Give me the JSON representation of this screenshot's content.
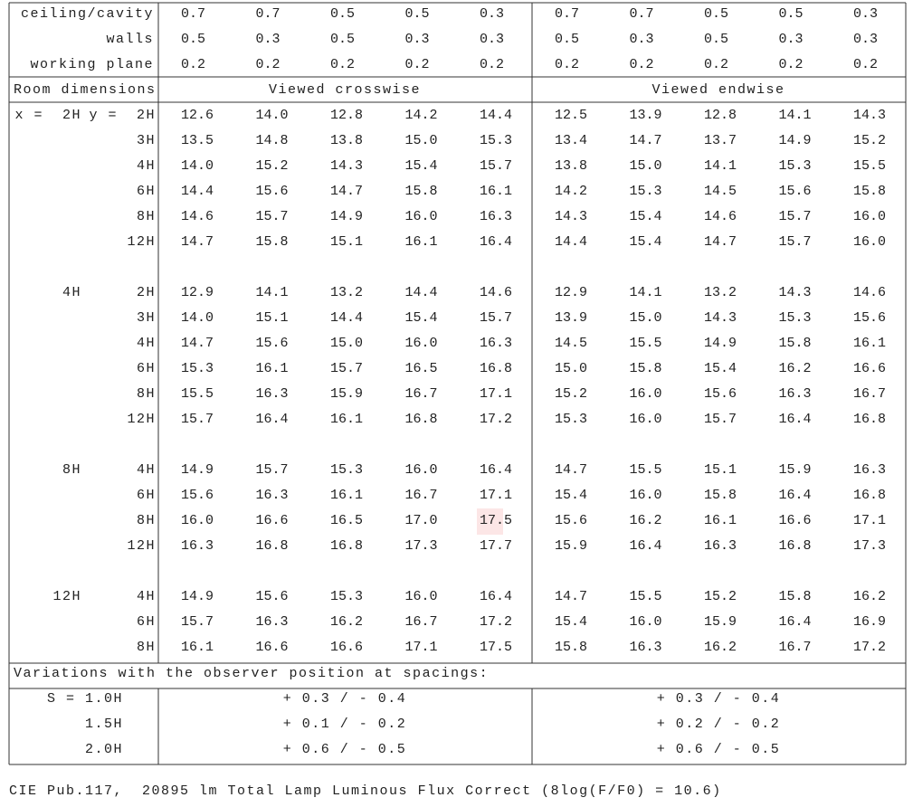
{
  "reflectances": [
    {
      "label": "ceiling/cavity",
      "values": [
        "0.7",
        "0.7",
        "0.5",
        "0.5",
        "0.3",
        "0.7",
        "0.7",
        "0.5",
        "0.5",
        "0.3"
      ]
    },
    {
      "label": "walls",
      "values": [
        "0.5",
        "0.3",
        "0.5",
        "0.3",
        "0.3",
        "0.5",
        "0.3",
        "0.5",
        "0.3",
        "0.3"
      ]
    },
    {
      "label": "working plane",
      "values": [
        "0.2",
        "0.2",
        "0.2",
        "0.2",
        "0.2",
        "0.2",
        "0.2",
        "0.2",
        "0.2",
        "0.2"
      ]
    }
  ],
  "header": {
    "label": "Room dimensions",
    "crosswise": "Viewed crosswise",
    "endwise": "Viewed endwise"
  },
  "groups": [
    {
      "x": "x =  2H",
      "rows": [
        {
          "y": "y =  2H",
          "values": [
            "12.6",
            "14.0",
            "12.8",
            "14.2",
            "14.4",
            "12.5",
            "13.9",
            "12.8",
            "14.1",
            "14.3"
          ]
        },
        {
          "y": "3H",
          "values": [
            "13.5",
            "14.8",
            "13.8",
            "15.0",
            "15.3",
            "13.4",
            "14.7",
            "13.7",
            "14.9",
            "15.2"
          ]
        },
        {
          "y": "4H",
          "values": [
            "14.0",
            "15.2",
            "14.3",
            "15.4",
            "15.7",
            "13.8",
            "15.0",
            "14.1",
            "15.3",
            "15.5"
          ]
        },
        {
          "y": "6H",
          "values": [
            "14.4",
            "15.6",
            "14.7",
            "15.8",
            "16.1",
            "14.2",
            "15.3",
            "14.5",
            "15.6",
            "15.8"
          ]
        },
        {
          "y": "8H",
          "values": [
            "14.6",
            "15.7",
            "14.9",
            "16.0",
            "16.3",
            "14.3",
            "15.4",
            "14.6",
            "15.7",
            "16.0"
          ]
        },
        {
          "y": "12H",
          "values": [
            "14.7",
            "15.8",
            "15.1",
            "16.1",
            "16.4",
            "14.4",
            "15.4",
            "14.7",
            "15.7",
            "16.0"
          ]
        }
      ]
    },
    {
      "x": "4H",
      "rows": [
        {
          "y": "2H",
          "values": [
            "12.9",
            "14.1",
            "13.2",
            "14.4",
            "14.6",
            "12.9",
            "14.1",
            "13.2",
            "14.3",
            "14.6"
          ]
        },
        {
          "y": "3H",
          "values": [
            "14.0",
            "15.1",
            "14.4",
            "15.4",
            "15.7",
            "13.9",
            "15.0",
            "14.3",
            "15.3",
            "15.6"
          ]
        },
        {
          "y": "4H",
          "values": [
            "14.7",
            "15.6",
            "15.0",
            "16.0",
            "16.3",
            "14.5",
            "15.5",
            "14.9",
            "15.8",
            "16.1"
          ]
        },
        {
          "y": "6H",
          "values": [
            "15.3",
            "16.1",
            "15.7",
            "16.5",
            "16.8",
            "15.0",
            "15.8",
            "15.4",
            "16.2",
            "16.6"
          ]
        },
        {
          "y": "8H",
          "values": [
            "15.5",
            "16.3",
            "15.9",
            "16.7",
            "17.1",
            "15.2",
            "16.0",
            "15.6",
            "16.3",
            "16.7"
          ]
        },
        {
          "y": "12H",
          "values": [
            "15.7",
            "16.4",
            "16.1",
            "16.8",
            "17.2",
            "15.3",
            "16.0",
            "15.7",
            "16.4",
            "16.8"
          ]
        }
      ]
    },
    {
      "x": "8H",
      "rows": [
        {
          "y": "4H",
          "values": [
            "14.9",
            "15.7",
            "15.3",
            "16.0",
            "16.4",
            "14.7",
            "15.5",
            "15.1",
            "15.9",
            "16.3"
          ]
        },
        {
          "y": "6H",
          "values": [
            "15.6",
            "16.3",
            "16.1",
            "16.7",
            "17.1",
            "15.4",
            "16.0",
            "15.8",
            "16.4",
            "16.8"
          ]
        },
        {
          "y": "8H",
          "values": [
            "16.0",
            "16.6",
            "16.5",
            "17.0",
            "17.5",
            "15.6",
            "16.2",
            "16.1",
            "16.6",
            "17.1"
          ]
        },
        {
          "y": "12H",
          "values": [
            "16.3",
            "16.8",
            "16.8",
            "17.3",
            "17.7",
            "15.9",
            "16.4",
            "16.3",
            "16.8",
            "17.3"
          ]
        }
      ]
    },
    {
      "x": "12H",
      "rows": [
        {
          "y": "4H",
          "values": [
            "14.9",
            "15.6",
            "15.3",
            "16.0",
            "16.4",
            "14.7",
            "15.5",
            "15.2",
            "15.8",
            "16.2"
          ]
        },
        {
          "y": "6H",
          "values": [
            "15.7",
            "16.3",
            "16.2",
            "16.7",
            "17.2",
            "15.4",
            "16.0",
            "15.9",
            "16.4",
            "16.9"
          ]
        },
        {
          "y": "8H",
          "values": [
            "16.1",
            "16.6",
            "16.6",
            "17.1",
            "17.5",
            "15.8",
            "16.3",
            "16.2",
            "16.7",
            "17.2"
          ]
        }
      ]
    }
  ],
  "variations": {
    "title": "Variations with the observer position at spacings:",
    "rows": [
      {
        "label": "S = 1.0H",
        "crosswise": "+ 0.3 / - 0.4",
        "endwise": "+ 0.3 / - 0.4"
      },
      {
        "label": "1.5H",
        "crosswise": "+ 0.1 / - 0.2",
        "endwise": "+ 0.2 / - 0.2"
      },
      {
        "label": "2.0H",
        "crosswise": "+ 0.6 / - 0.5",
        "endwise": "+ 0.6 / - 0.5"
      }
    ]
  },
  "footer": "CIE Pub.117,  20895 lm Total Lamp Luminous Flux Correct (8log(F/F0) = 10.6)"
}
